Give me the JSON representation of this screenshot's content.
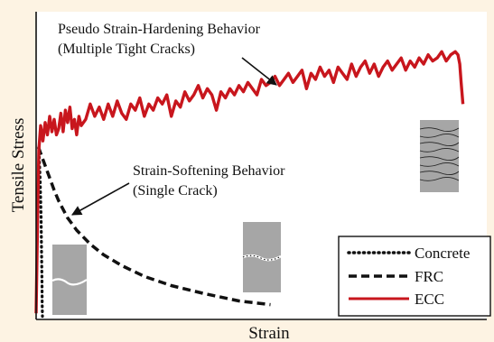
{
  "colors": {
    "page_background": "#fdf3e3",
    "plot_background": "#ffffff",
    "ecc": "#c8161d",
    "frc": "#111111",
    "concrete": "#111111",
    "specimen": "#a6a6a6",
    "crack": "#ffffff",
    "crack_dark": "#222222"
  },
  "chart_data": {
    "type": "line",
    "xlabel": "Strain",
    "ylabel": "Tensile Stress",
    "xlim": [
      0,
      100
    ],
    "ylim": [
      0,
      100
    ],
    "grid": false,
    "axis_ticks": false,
    "legend_position": "bottom-right",
    "annotations": [
      {
        "id": "hardening",
        "lines": [
          "Pseudo Strain-Hardening Behavior",
          "(Multiple Tight Cracks)"
        ],
        "arrow_to": {
          "x": 53,
          "y": 77
        }
      },
      {
        "id": "softening",
        "lines": [
          "Strain-Softening Behavior",
          "(Single Crack)"
        ],
        "arrow_to": {
          "x": 7,
          "y": 34
        }
      }
    ],
    "specimens": [
      {
        "id": "single-crack-concrete",
        "crack": "single",
        "near_series": "Concrete"
      },
      {
        "id": "single-crack-frc",
        "crack": "single-dotted",
        "near_series": "FRC"
      },
      {
        "id": "multiple-cracks-ecc",
        "crack": "multiple",
        "near_series": "ECC"
      }
    ],
    "series": [
      {
        "name": "Concrete",
        "style": "dotted",
        "x": [
          0.6,
          0.9,
          1.1,
          1.2,
          1.3,
          1.35,
          1.4
        ],
        "y": [
          56,
          45,
          33,
          22,
          12,
          5,
          1
        ]
      },
      {
        "name": "FRC",
        "style": "dashed",
        "x": [
          0.5,
          1,
          2,
          3,
          4,
          5,
          7,
          9,
          12,
          15,
          19,
          24,
          30,
          37,
          45,
          52
        ],
        "y": [
          56,
          54,
          50,
          46,
          42,
          38.5,
          33,
          29,
          24.5,
          21,
          17.5,
          14,
          11,
          8.5,
          6,
          4.8
        ]
      },
      {
        "name": "ECC",
        "style": "solid",
        "x": [
          0,
          0.3,
          0.6,
          1,
          1.5,
          2,
          2.5,
          3,
          3.5,
          4,
          4.5,
          5,
          5.5,
          6,
          6.5,
          7,
          7.5,
          8,
          8.5,
          9,
          9.5,
          10,
          11,
          12,
          13,
          14,
          15,
          16,
          17,
          18,
          19,
          20,
          21,
          22,
          23,
          24,
          25,
          26,
          27,
          28,
          29,
          30,
          31,
          32,
          33,
          34,
          35,
          36,
          37,
          38,
          39,
          40,
          41,
          42,
          43,
          44,
          45,
          46,
          47,
          48,
          49,
          50,
          51,
          52,
          53,
          54,
          55,
          56,
          57,
          58,
          59,
          60,
          61,
          62,
          63,
          64,
          65,
          66,
          67,
          68,
          69,
          70,
          71,
          72,
          73,
          74,
          75,
          76,
          77,
          78,
          79,
          80,
          81,
          82,
          83,
          84,
          85,
          86,
          87,
          88,
          89,
          90,
          91,
          92,
          93,
          93.6,
          94,
          94.3,
          94.7
        ],
        "y": [
          2,
          30,
          55,
          63,
          58,
          64,
          60,
          66,
          61,
          65,
          60,
          62,
          67,
          61,
          68,
          64,
          69,
          62,
          65,
          60,
          66,
          63,
          65,
          70,
          66,
          69,
          65,
          70,
          66,
          71,
          67,
          65,
          70,
          68,
          72,
          66,
          70,
          68,
          72,
          70,
          73,
          66,
          71,
          69,
          74,
          71,
          73,
          76,
          72,
          75,
          73,
          68,
          74,
          72,
          75,
          73,
          76,
          74,
          77,
          75,
          73,
          78,
          76,
          77,
          79,
          76,
          78,
          80,
          77,
          79,
          81,
          75,
          80,
          78,
          82,
          79,
          81,
          77,
          82,
          80,
          78,
          83,
          79,
          82,
          84,
          80,
          83,
          79,
          82,
          84,
          81,
          83,
          85,
          81,
          84,
          82,
          85,
          83,
          86,
          84,
          85,
          87,
          84,
          86,
          87,
          86,
          83,
          77,
          70
        ]
      }
    ]
  }
}
